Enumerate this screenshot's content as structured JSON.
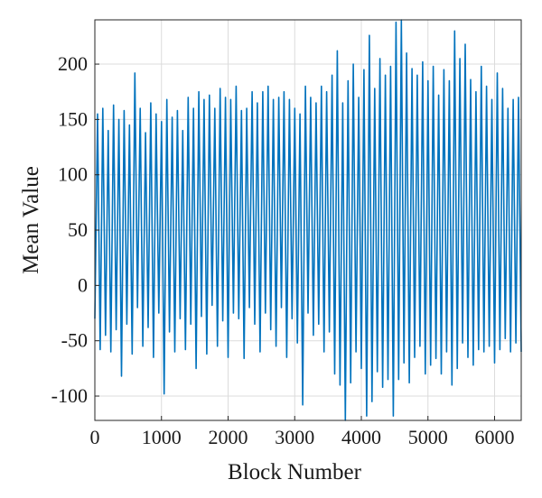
{
  "chart_data": {
    "type": "line",
    "title": "",
    "xlabel": "Block Number",
    "ylabel": "Mean Value",
    "xlim": [
      0,
      6400
    ],
    "ylim": [
      -122,
      240
    ],
    "grid": true,
    "xticks": [
      0,
      1000,
      2000,
      3000,
      4000,
      5000,
      6000
    ],
    "xtick_labels": [
      "0",
      "1000",
      "2000",
      "3000",
      "4000",
      "5000",
      "6000"
    ],
    "yticks": [
      200,
      150,
      100,
      50,
      0,
      -50,
      -100
    ],
    "ytick_labels": [
      "200",
      "150",
      "100",
      "50",
      "0",
      "-50",
      "-100"
    ],
    "series": [
      {
        "color": "#0072BD",
        "x": [
          0,
          40,
          80,
          120,
          160,
          200,
          240,
          280,
          320,
          360,
          400,
          440,
          480,
          520,
          560,
          600,
          640,
          680,
          720,
          760,
          800,
          840,
          880,
          920,
          960,
          1000,
          1040,
          1080,
          1120,
          1160,
          1200,
          1240,
          1280,
          1320,
          1360,
          1400,
          1440,
          1480,
          1520,
          1560,
          1600,
          1640,
          1680,
          1720,
          1760,
          1800,
          1840,
          1880,
          1920,
          1960,
          2000,
          2040,
          2080,
          2120,
          2160,
          2200,
          2240,
          2280,
          2320,
          2360,
          2400,
          2440,
          2480,
          2520,
          2560,
          2600,
          2640,
          2680,
          2720,
          2760,
          2800,
          2840,
          2880,
          2920,
          2960,
          3000,
          3040,
          3080,
          3120,
          3160,
          3200,
          3240,
          3280,
          3320,
          3360,
          3400,
          3440,
          3480,
          3520,
          3560,
          3600,
          3640,
          3680,
          3720,
          3760,
          3800,
          3840,
          3880,
          3920,
          3960,
          4000,
          4040,
          4080,
          4120,
          4160,
          4200,
          4240,
          4280,
          4320,
          4360,
          4400,
          4440,
          4480,
          4520,
          4560,
          4600,
          4640,
          4680,
          4720,
          4760,
          4800,
          4840,
          4880,
          4920,
          4960,
          5000,
          5040,
          5080,
          5120,
          5160,
          5200,
          5240,
          5280,
          5320,
          5360,
          5400,
          5440,
          5480,
          5520,
          5560,
          5600,
          5640,
          5680,
          5720,
          5760,
          5800,
          5840,
          5880,
          5920,
          5960,
          6000,
          6040,
          6080,
          6120,
          6160,
          6200,
          6240,
          6280,
          6320,
          6360,
          6400
        ],
        "y": [
          -30,
          155,
          -58,
          160,
          -45,
          140,
          -60,
          163,
          -40,
          150,
          -82,
          158,
          -35,
          145,
          -62,
          192,
          -20,
          160,
          -55,
          138,
          -38,
          165,
          -65,
          155,
          -25,
          148,
          -98,
          168,
          -42,
          152,
          -60,
          158,
          -30,
          140,
          -58,
          170,
          -35,
          160,
          -75,
          175,
          -28,
          168,
          -62,
          172,
          -18,
          160,
          -55,
          178,
          -32,
          170,
          -65,
          168,
          -25,
          180,
          -30,
          158,
          -66,
          160,
          -20,
          175,
          -35,
          165,
          -60,
          175,
          -25,
          180,
          -40,
          168,
          -55,
          170,
          -20,
          175,
          -65,
          168,
          -30,
          160,
          -52,
          155,
          -108,
          180,
          -25,
          170,
          -45,
          165,
          -35,
          180,
          -60,
          175,
          -42,
          190,
          -80,
          212,
          -90,
          165,
          -122,
          185,
          -88,
          200,
          -60,
          170,
          -75,
          195,
          -118,
          226,
          -105,
          178,
          -78,
          205,
          -92,
          190,
          -85,
          198,
          -118,
          238,
          -85,
          240,
          -70,
          210,
          -88,
          196,
          -65,
          190,
          -55,
          202,
          -80,
          185,
          -72,
          198,
          -66,
          172,
          -80,
          195,
          -60,
          185,
          -90,
          230,
          -75,
          205,
          -52,
          218,
          -65,
          186,
          -72,
          175,
          -58,
          198,
          -60,
          180,
          -55,
          168,
          -70,
          192,
          -58,
          178,
          -48,
          160,
          -60,
          168,
          -52,
          170,
          -60
        ]
      }
    ]
  }
}
